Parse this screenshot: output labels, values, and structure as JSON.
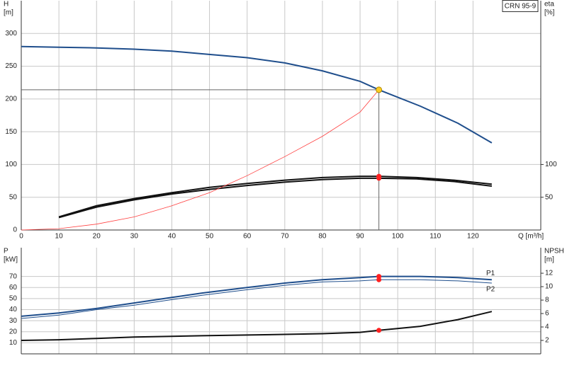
{
  "chart_data": [
    {
      "type": "line",
      "title": "CRN 95-9",
      "ylabel": [
        "H",
        "[m]"
      ],
      "y2label": [
        "eta",
        "[%]"
      ],
      "xlabel": "Q [m³/h]",
      "xlim": [
        0,
        138
      ],
      "xticks": [
        0,
        10,
        20,
        30,
        40,
        50,
        60,
        70,
        80,
        90,
        100,
        110,
        120
      ],
      "ylim": [
        0,
        350
      ],
      "yticks": [
        0,
        50,
        100,
        150,
        200,
        250,
        300
      ],
      "y2lim": [
        0,
        350
      ],
      "y2ticks": [
        50,
        100
      ],
      "grid": true,
      "show_xtick_labels": true,
      "operating_point": {
        "x": 95,
        "y": 214,
        "color": "#ffcc22"
      },
      "point_color": "#ff2020",
      "series": [
        {
          "color": "#1f4e8c",
          "width": 2,
          "x": [
            0,
            10,
            20,
            30,
            40,
            48,
            60,
            70,
            80,
            90,
            95,
            106,
            116,
            125
          ],
          "values": [
            280,
            279,
            278,
            276,
            273,
            269,
            263,
            255,
            243,
            227,
            214,
            189,
            163,
            133
          ]
        },
        {
          "color": "#111111",
          "width": 2,
          "axis": "y2",
          "x": [
            10,
            20,
            30,
            40,
            50,
            60,
            70,
            80,
            90,
            95,
            105,
            115,
            125
          ],
          "values": [
            20,
            37,
            48,
            57,
            65,
            71,
            76,
            80,
            82,
            82,
            80,
            76,
            70
          ]
        },
        {
          "color": "#111111",
          "width": 2,
          "axis": "y2",
          "x": [
            10,
            20,
            30,
            40,
            50,
            60,
            70,
            80,
            90,
            95,
            105,
            115,
            125
          ],
          "values": [
            19,
            35,
            46,
            55,
            62,
            68,
            73,
            77,
            79,
            79,
            78,
            74,
            67
          ]
        },
        {
          "color": "#ff4040",
          "width": 0.8,
          "x": [
            0,
            10,
            20,
            30,
            40,
            50,
            60,
            70,
            80,
            90,
            95
          ],
          "values": [
            0,
            2,
            9,
            20,
            37,
            57,
            83,
            112,
            143,
            180,
            214
          ]
        }
      ]
    },
    {
      "type": "line",
      "ylabel": [
        "P",
        "[kW]"
      ],
      "y2label": [
        "NPSH",
        "[m]"
      ],
      "xlim": [
        0,
        138
      ],
      "xticks": [
        0,
        10,
        20,
        30,
        40,
        50,
        60,
        70,
        80,
        90,
        100,
        110,
        120
      ],
      "ylim": [
        0,
        96
      ],
      "yticks": [
        10,
        20,
        30,
        40,
        50,
        60,
        70
      ],
      "y2lim": [
        0,
        15.8
      ],
      "y2ticks": [
        2,
        4,
        6,
        8,
        10,
        12
      ],
      "grid": true,
      "show_xtick_labels": false,
      "operating_x": 95,
      "point_color": "#ff2020",
      "series": [
        {
          "name": "P1",
          "color": "#1f4e8c",
          "width": 2,
          "x": [
            0,
            10,
            20,
            30,
            40,
            48,
            60,
            70,
            80,
            90,
            95,
            106,
            116,
            125
          ],
          "values": [
            34,
            37,
            41,
            46,
            51,
            55,
            60,
            64,
            67,
            69,
            70,
            70,
            69,
            67
          ]
        },
        {
          "name": "P2",
          "color": "#1f4e8c",
          "width": 1,
          "x": [
            0,
            10,
            20,
            30,
            40,
            48,
            60,
            70,
            80,
            90,
            95,
            106,
            116,
            125
          ],
          "values": [
            32,
            35,
            40,
            44,
            49,
            53,
            58,
            62,
            65,
            66,
            67,
            67,
            66,
            64
          ]
        },
        {
          "color": "#111111",
          "width": 2,
          "axis": "y2",
          "x": [
            0,
            10,
            20,
            30,
            40,
            48,
            60,
            70,
            80,
            90,
            95,
            106,
            116,
            125
          ],
          "values": [
            2,
            2.1,
            2.3,
            2.5,
            2.6,
            2.7,
            2.8,
            2.9,
            3.0,
            3.2,
            3.5,
            4.1,
            5.1,
            6.3
          ]
        }
      ]
    }
  ]
}
